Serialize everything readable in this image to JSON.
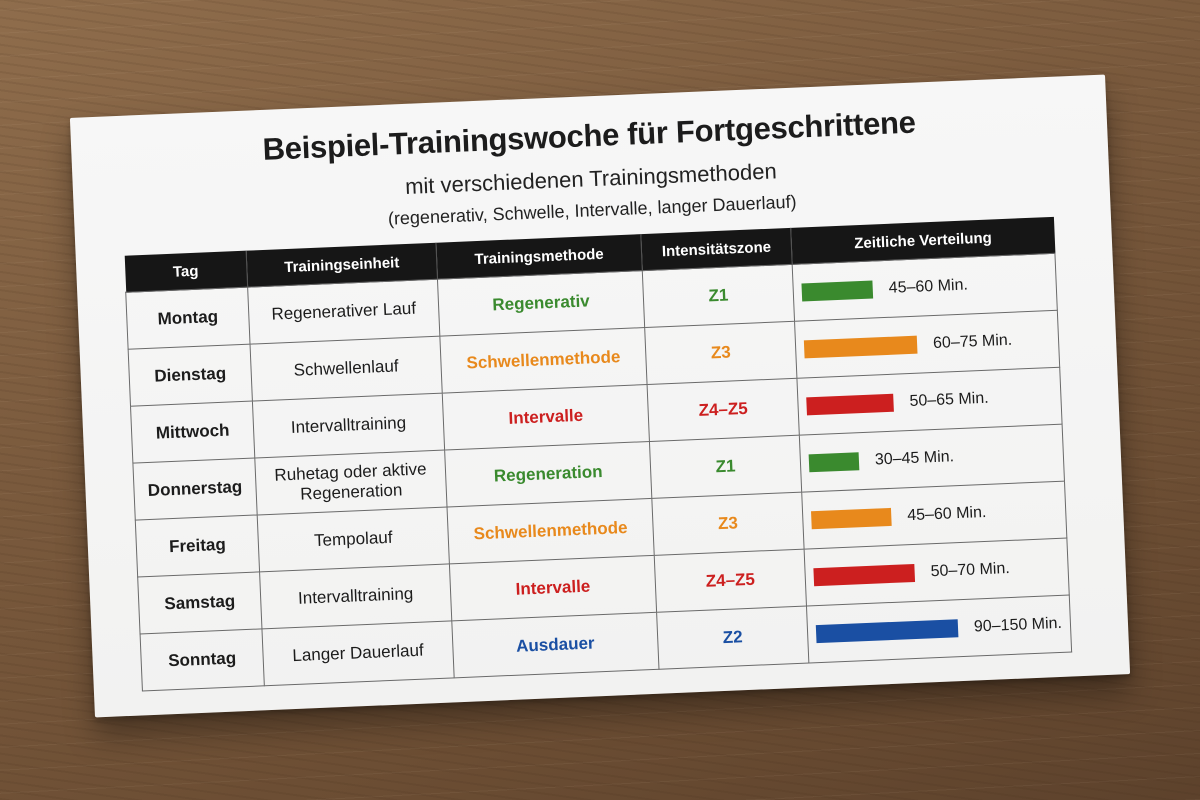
{
  "title": "Beispiel-Trainingswoche für Fortgeschrittene",
  "subtitle": "mit verschiedenen Trainingsmethoden",
  "note": "(regenerativ, Schwelle, Intervalle, langer Dauerlauf)",
  "colors": {
    "green": "#3a8a2e",
    "orange": "#e8891c",
    "red": "#cc1f1f",
    "blue": "#1a4fa3"
  },
  "table": {
    "headers": [
      "Tag",
      "Trainingseinheit",
      "Trainingsmethode",
      "Intensitätszone",
      "Zeitliche Verteilung"
    ],
    "rows": [
      {
        "day": "Montag",
        "unit": "Regenerativer Lauf",
        "method": "Regenerativ",
        "zone": "Z1",
        "duration": "45–60 Min.",
        "color": "#3a8a2e",
        "bar_level": 0.47
      },
      {
        "day": "Dienstag",
        "unit": "Schwellenlauf",
        "method": "Schwellenmethode",
        "zone": "Z3",
        "duration": "60–75 Min.",
        "color": "#e8891c",
        "bar_level": 0.75
      },
      {
        "day": "Mittwoch",
        "unit": "Intervalltraining",
        "method": "Intervalle",
        "zone": "Z4–Z5",
        "duration": "50–65 Min.",
        "color": "#cc1f1f",
        "bar_level": 0.58
      },
      {
        "day": "Donnerstag",
        "unit": "Ruhetag oder aktive Regeneration",
        "method": "Regeneration",
        "zone": "Z1",
        "duration": "30–45 Min.",
        "color": "#3a8a2e",
        "bar_level": 0.33
      },
      {
        "day": "Freitag",
        "unit": "Tempolauf",
        "method": "Schwellenmethode",
        "zone": "Z3",
        "duration": "45–60 Min.",
        "color": "#e8891c",
        "bar_level": 0.53
      },
      {
        "day": "Samstag",
        "unit": "Intervalltraining",
        "method": "Intervalle",
        "zone": "Z4–Z5",
        "duration": "50–70 Min.",
        "color": "#cc1f1f",
        "bar_level": 0.67
      },
      {
        "day": "Sonntag",
        "unit": "Langer Dauerlauf",
        "method": "Ausdauer",
        "zone": "Z2",
        "duration": "90–150 Min.",
        "color": "#1a4fa3",
        "bar_level": 1.0
      }
    ]
  }
}
